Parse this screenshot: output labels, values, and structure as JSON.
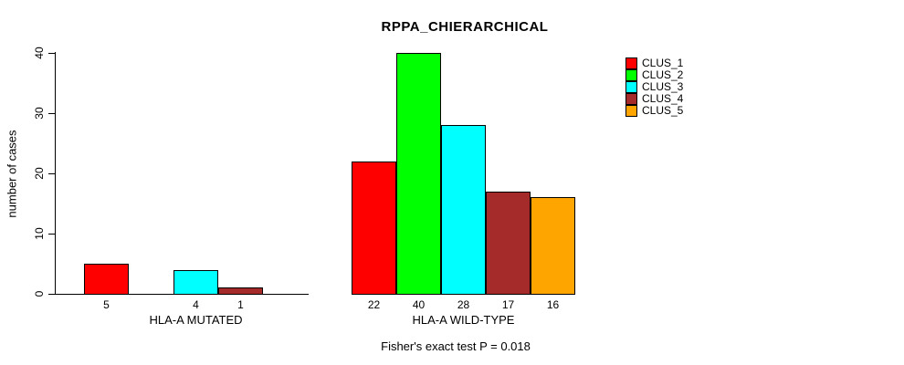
{
  "title": "RPPA_CHIERARCHICAL",
  "ylabel": "number of cases",
  "footnote": "Fisher's exact test P = 0.018",
  "yticks": [
    0,
    10,
    20,
    30,
    40
  ],
  "legend": {
    "entries": [
      {
        "label": "CLUS_1",
        "color": "#FF0000"
      },
      {
        "label": "CLUS_2",
        "color": "#00FF00"
      },
      {
        "label": "CLUS_3",
        "color": "#00FFFF"
      },
      {
        "label": "CLUS_4",
        "color": "#A52A2A"
      },
      {
        "label": "CLUS_5",
        "color": "#FFA500"
      }
    ]
  },
  "chart_data": {
    "type": "bar",
    "title": "RPPA_CHIERARCHICAL",
    "xlabel": "",
    "ylabel": "number of cases",
    "ylim": [
      0,
      40
    ],
    "yticks": [
      0,
      10,
      20,
      30,
      40
    ],
    "grid": false,
    "legend_position": "top-right",
    "series_names": [
      "CLUS_1",
      "CLUS_2",
      "CLUS_3",
      "CLUS_4",
      "CLUS_5"
    ],
    "series_colors": [
      "#FF0000",
      "#00FF00",
      "#00FFFF",
      "#A52A2A",
      "#FFA500"
    ],
    "groups": [
      {
        "label": "HLA-A MUTATED",
        "values": [
          5,
          0,
          4,
          1,
          0
        ],
        "bar_labels": [
          "5",
          "",
          "4",
          "1",
          ""
        ]
      },
      {
        "label": "HLA-A WILD-TYPE",
        "values": [
          22,
          40,
          28,
          17,
          16
        ],
        "bar_labels": [
          "22",
          "40",
          "28",
          "17",
          "16"
        ]
      }
    ],
    "annotation": "Fisher's exact test P = 0.018"
  }
}
